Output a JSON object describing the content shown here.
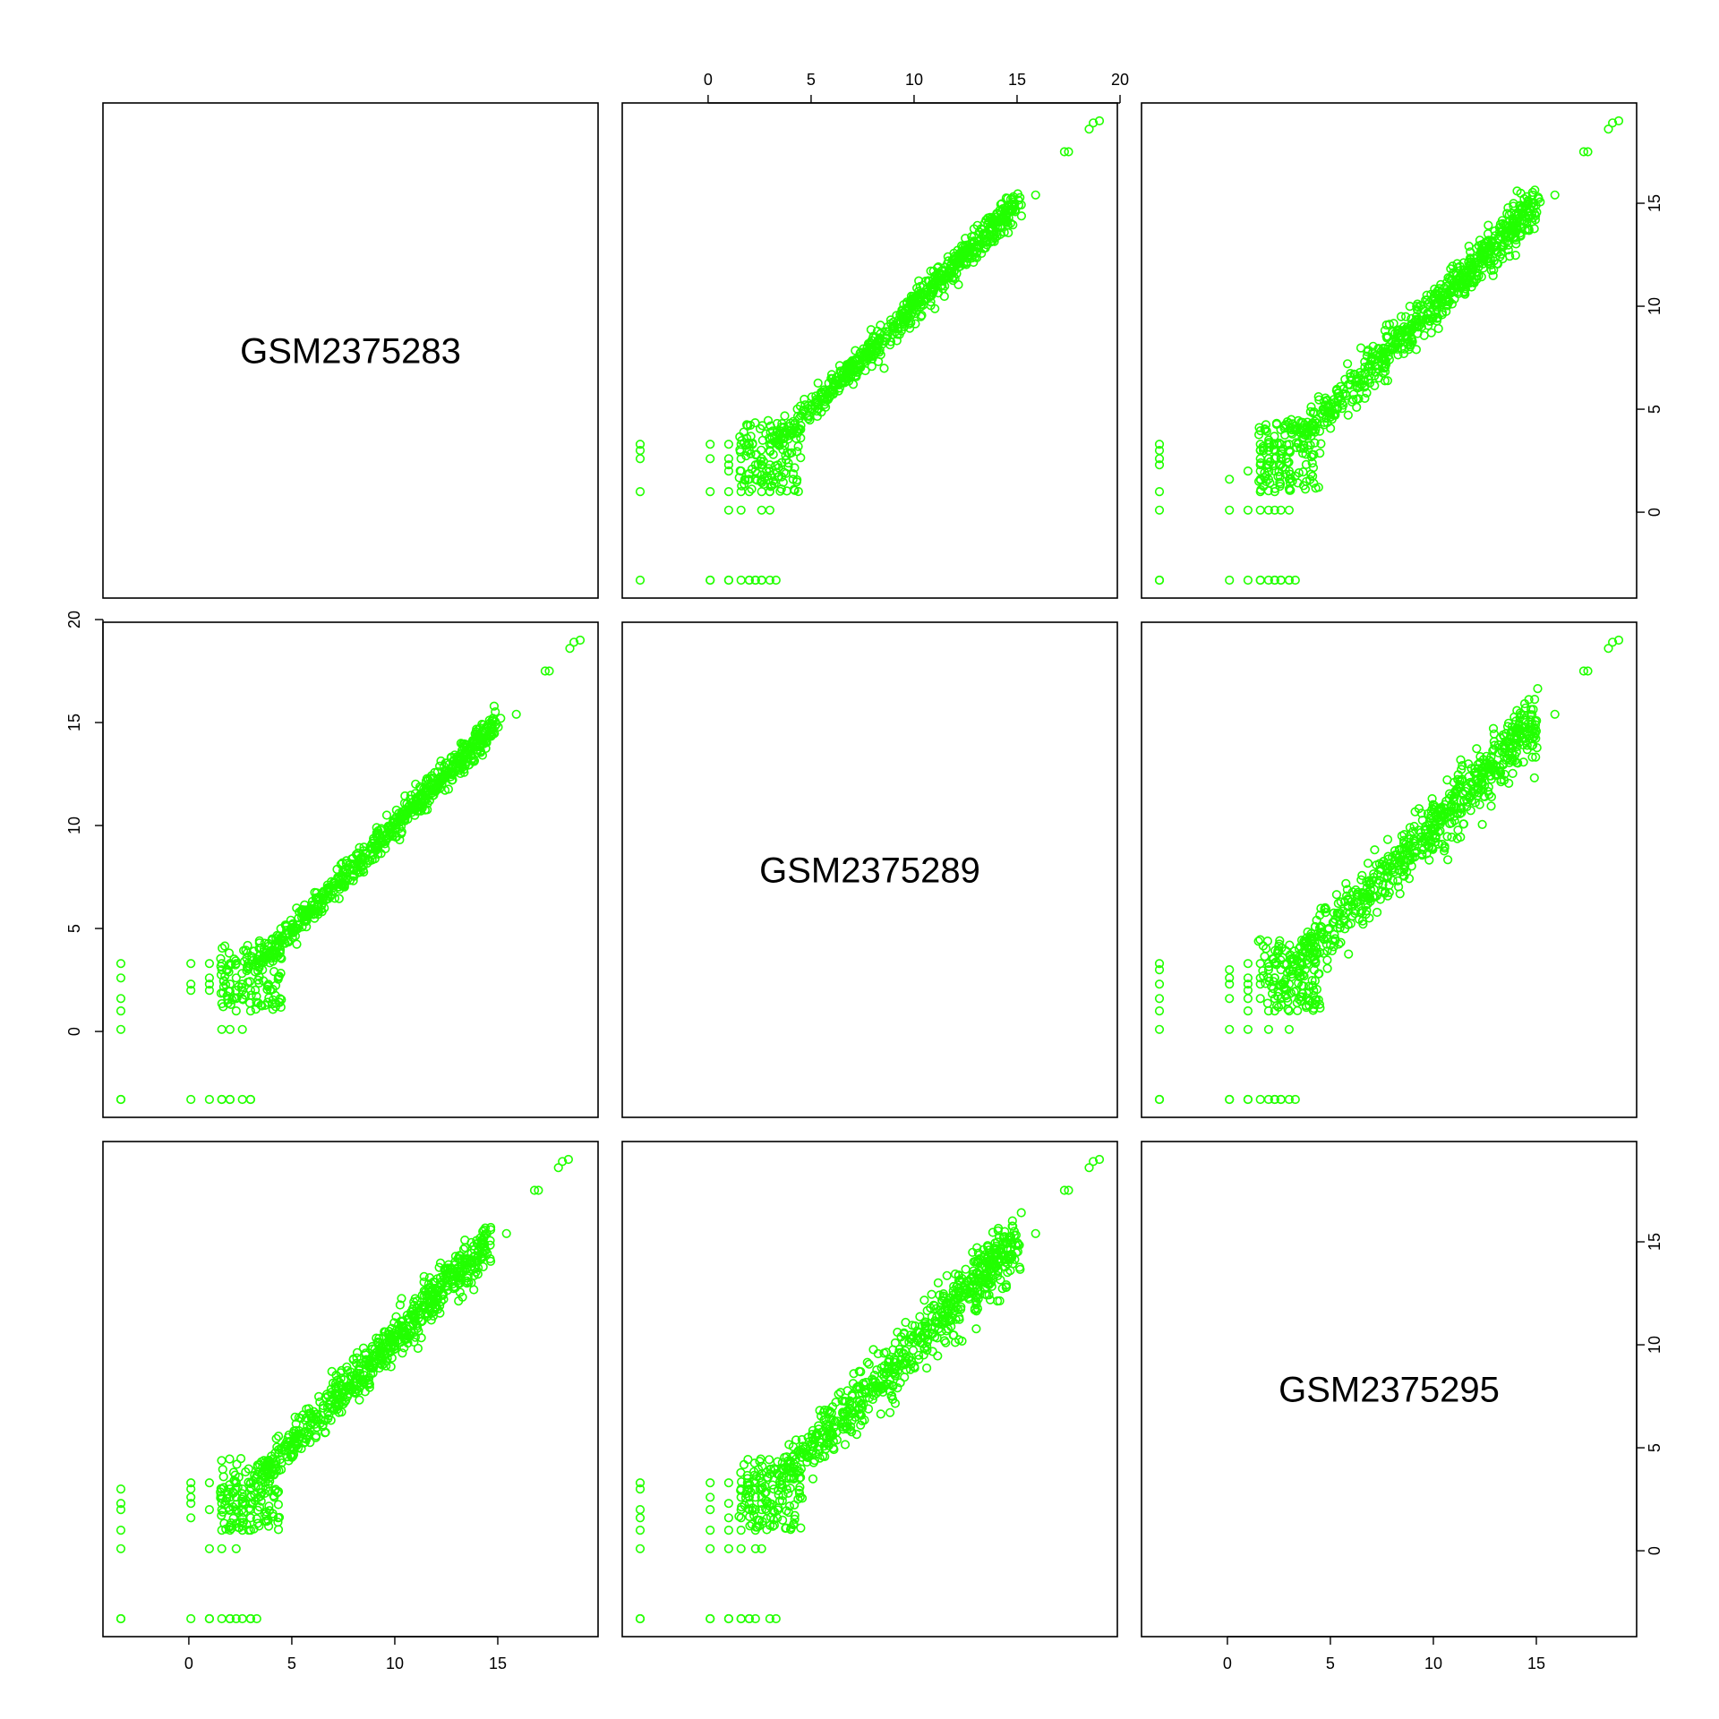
{
  "chart_data": {
    "type": "scatter",
    "variables": [
      "GSM2375283",
      "GSM2375289",
      "GSM2375295"
    ],
    "point_color": "#22ff00",
    "point_shape": "open-circle",
    "axis_range": [
      -3.3,
      19.0
    ],
    "axis_ticks": [
      0,
      5,
      10,
      15,
      20
    ],
    "axes_shown": {
      "top": {
        "over_column": 1,
        "ticks": [
          0,
          5,
          10,
          15,
          20
        ]
      },
      "left": {
        "beside_row": 1,
        "ticks": [
          0,
          5,
          10,
          15,
          20
        ]
      },
      "right": [
        {
          "beside_row": 0,
          "ticks": [
            0,
            5,
            10,
            15
          ]
        },
        {
          "beside_row": 2,
          "ticks": [
            0,
            5,
            10,
            15
          ]
        }
      ],
      "bottom": [
        {
          "under_column": 0,
          "ticks": [
            0,
            5,
            10,
            15
          ]
        },
        {
          "under_column": 2,
          "ticks": [
            0,
            5,
            10,
            15
          ]
        }
      ]
    },
    "panels": [
      {
        "x": "GSM2375289",
        "y": "GSM2375283",
        "spread": 0.35,
        "x_scale": 1.0
      },
      {
        "x": "GSM2375295",
        "y": "GSM2375283",
        "spread": 0.55,
        "x_scale": 1.0
      },
      {
        "x": "GSM2375283",
        "y": "GSM2375289",
        "spread": 0.35,
        "x_scale": 1.0
      },
      {
        "x": "GSM2375295",
        "y": "GSM2375289",
        "spread": 0.75,
        "x_scale": 1.0
      },
      {
        "x": "GSM2375283",
        "y": "GSM2375295",
        "spread": 0.55,
        "x_scale": 0.97
      },
      {
        "x": "GSM2375289",
        "y": "GSM2375295",
        "spread": 0.75,
        "x_scale": 1.0
      }
    ],
    "outliers": [
      [
        15.9,
        15.4
      ],
      [
        17.3,
        17.5
      ],
      [
        17.5,
        17.5
      ],
      [
        18.5,
        18.6
      ],
      [
        18.7,
        18.9
      ],
      [
        19.0,
        19.1
      ]
    ],
    "low_x_columns": [
      -3.3,
      0.1,
      1.0,
      1.6,
      2.0,
      2.3,
      2.6,
      3.0
    ],
    "low_y_levels": [
      -3.3,
      0.1,
      1.0,
      1.6,
      2.0,
      2.3,
      2.6,
      3.0,
      3.3
    ]
  }
}
